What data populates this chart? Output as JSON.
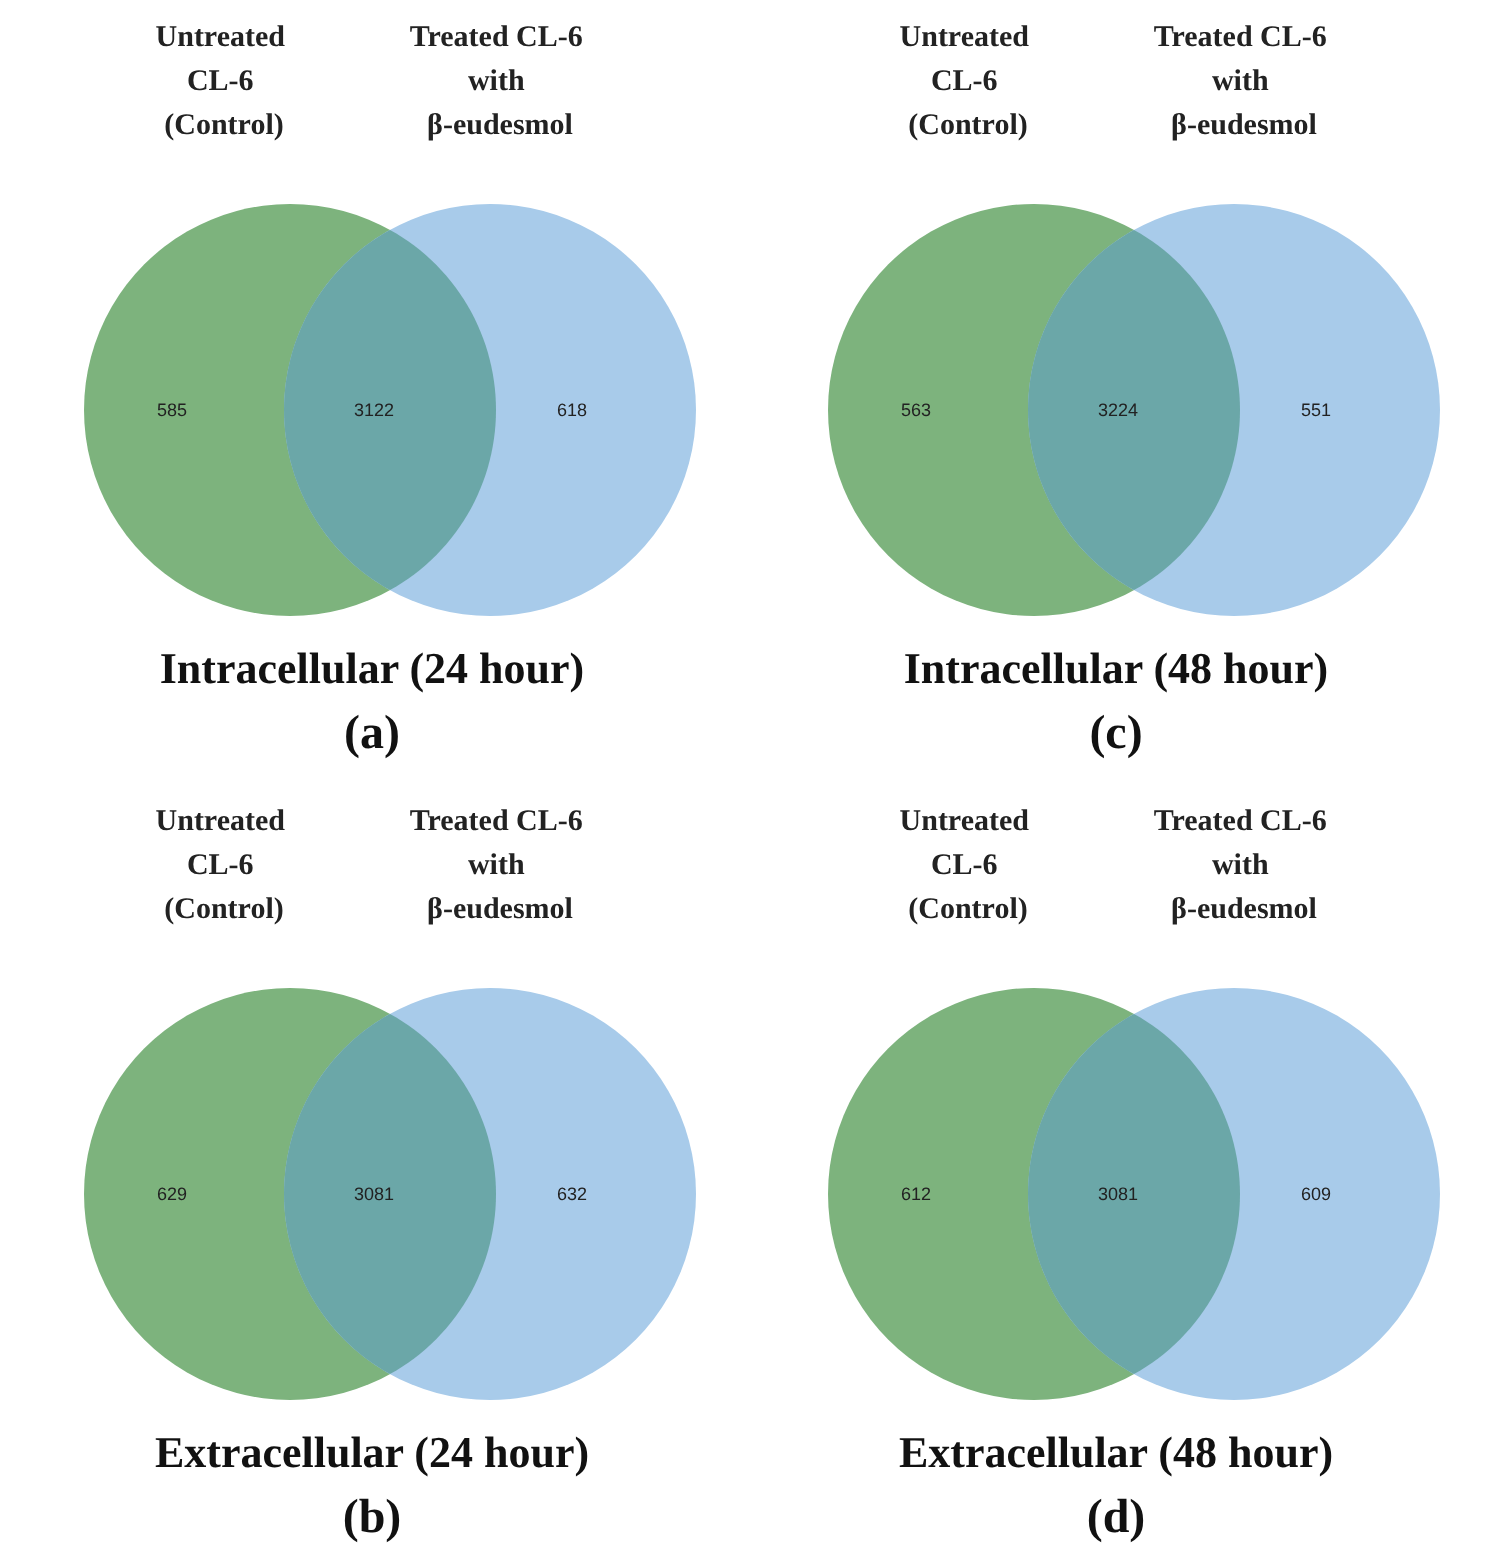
{
  "chart_data": [
    {
      "type": "other",
      "title": "Intracellular (24 hour)",
      "subtitle": "(a)",
      "annotations": [
        "Untreated CL-6 (Control)",
        "Treated CL-6 with β-eudesmol"
      ],
      "categories": [
        null,
        null,
        null
      ],
      "colors": [
        "#7db37d",
        "#6ba7a8",
        "#a8cbea"
      ],
      "values": [
        585,
        3122,
        618
      ],
      "data_labels": true
    },
    {
      "type": "other",
      "title": "Intracellular (48 hour)",
      "subtitle": "(c)",
      "annotations": [
        "Untreated CL-6 (Control)",
        "Treated CL-6 with β-eudesmol"
      ],
      "categories": [
        null,
        null,
        null
      ],
      "colors": [
        "#7db37d",
        "#6ba7a8",
        "#a8cbea"
      ],
      "values": [
        563,
        3224,
        551
      ],
      "data_labels": true
    },
    {
      "type": "other",
      "title": "Extracellular (24 hour)",
      "subtitle": "(b)",
      "annotations": [
        "Untreated CL-6 (Control)",
        "Treated CL-6 with β-eudesmol"
      ],
      "categories": [
        null,
        null,
        null
      ],
      "colors": [
        "#7db37d",
        "#6ba7a8",
        "#a8cbea"
      ],
      "values": [
        629,
        3081,
        632
      ],
      "data_labels": true
    },
    {
      "type": "other",
      "title": "Extracellular (48 hour)",
      "subtitle": "(d)",
      "annotations": [
        "Untreated CL-6 (Control)",
        "Treated CL-6 with β-eudesmol"
      ],
      "categories": [
        null,
        null,
        null
      ],
      "colors": [
        "#7db37d",
        "#6ba7a8",
        "#a8cbea"
      ],
      "values": [
        612,
        3081,
        609
      ],
      "data_labels": true
    }
  ]
}
